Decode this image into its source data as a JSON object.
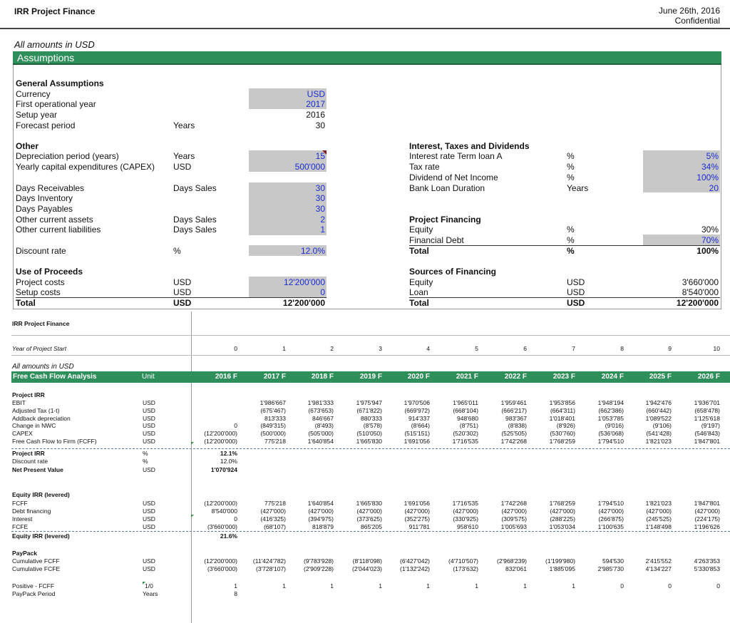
{
  "header": {
    "title": "IRR Project Finance",
    "date": "June 26th, 2016",
    "confidential": "Confidential"
  },
  "amounts_label": "All amounts in USD",
  "assumptions_title": "Assumptions",
  "general": {
    "heading": "General Assumptions",
    "currency": {
      "label": "Currency",
      "value": "USD"
    },
    "first_year": {
      "label": "First operational year",
      "value": "2017"
    },
    "setup_year": {
      "label": "Setup year",
      "value": "2016"
    },
    "forecast": {
      "label": "Forecast period",
      "unit": "Years",
      "value": "30"
    }
  },
  "other": {
    "heading": "Other",
    "dep": {
      "label": "Depreciation period (years)",
      "unit": "Years",
      "value": "15"
    },
    "capex": {
      "label": "Yearly capital expenditures (CAPEX)",
      "unit": "USD",
      "value": "500'000"
    },
    "dr": {
      "label": "Days Receivables",
      "unit": "Days Sales",
      "value": "30"
    },
    "di": {
      "label": "Days Inventory",
      "value": "30"
    },
    "dp": {
      "label": "Days Payables",
      "value": "30"
    },
    "oca": {
      "label": "Other current assets",
      "unit": "Days Sales",
      "value": "2"
    },
    "ocl": {
      "label": "Other current liabilities",
      "unit": "Days Sales",
      "value": "1"
    },
    "disc": {
      "label": "Discount rate",
      "unit": "%",
      "value": "12.0%"
    }
  },
  "use": {
    "heading": "Use of Proceeds",
    "proj": {
      "label": "Project costs",
      "unit": "USD",
      "value": "12'200'000"
    },
    "setup": {
      "label": "Setup costs",
      "unit": "USD",
      "value": "0"
    },
    "total": {
      "label": "Total",
      "unit": "USD",
      "value": "12'200'000"
    }
  },
  "itd": {
    "heading": "Interest, Taxes and Dividends",
    "rate": {
      "label": "Interest rate Term loan A",
      "unit": "%",
      "value": "5%"
    },
    "tax": {
      "label": "Tax rate",
      "unit": "%",
      "value": "34%"
    },
    "div": {
      "label": "Dividend of Net Income",
      "unit": "%",
      "value": "100%"
    },
    "dur": {
      "label": "Bank Loan Duration",
      "unit": "Years",
      "value": "20"
    }
  },
  "pf": {
    "heading": "Project Financing",
    "eq": {
      "label": "Equity",
      "unit": "%",
      "value": "30%"
    },
    "debt": {
      "label": "Financial Debt",
      "unit": "%",
      "value": "70%"
    },
    "total": {
      "label": "Total",
      "unit": "%",
      "value": "100%"
    }
  },
  "sof": {
    "heading": "Sources of Financing",
    "eq": {
      "label": "Equity",
      "unit": "USD",
      "value": "3'660'000"
    },
    "loan": {
      "label": "Loan",
      "unit": "USD",
      "value": "8'540'000"
    },
    "total": {
      "label": "Total",
      "unit": "USD",
      "value": "12'200'000"
    }
  },
  "model": {
    "title": "IRR Project Finance",
    "year_start_label": "Year of Project Start",
    "year_index": [
      "0",
      "1",
      "2",
      "3",
      "4",
      "5",
      "6",
      "7",
      "8",
      "9",
      "10"
    ],
    "amounts_label": "All amounts in USD",
    "fcf_title": "Free Cash Flow Analysis",
    "unit_header": "Unit",
    "years": [
      "2016 F",
      "2017 F",
      "2018 F",
      "2019 F",
      "2020 F",
      "2021 F",
      "2022 F",
      "2023 F",
      "2024 F",
      "2025 F",
      "2026 F"
    ],
    "project_irr_heading": "Project IRR",
    "project_rows": [
      {
        "label": "EBIT",
        "unit": "USD",
        "values": [
          "",
          "1'986'667",
          "1'981'333",
          "1'975'947",
          "1'970'506",
          "1'965'011",
          "1'959'461",
          "1'953'856",
          "1'948'194",
          "1'942'476",
          "1'936'701"
        ]
      },
      {
        "label": "Adjusted Tax (1-t)",
        "unit": "USD",
        "values": [
          "",
          "(675'467)",
          "(673'653)",
          "(671'822)",
          "(669'972)",
          "(668'104)",
          "(666'217)",
          "(664'311)",
          "(662'386)",
          "(660'442)",
          "(658'478)"
        ]
      },
      {
        "label": "Addback depreciation",
        "unit": "USD",
        "values": [
          "",
          "813'333",
          "846'667",
          "880'333",
          "914'337",
          "948'680",
          "983'367",
          "1'018'401",
          "1'053'785",
          "1'089'522",
          "1'125'618"
        ]
      },
      {
        "label": "Change in NWC",
        "unit": "USD",
        "values": [
          "0",
          "(849'315)",
          "(8'493)",
          "(8'578)",
          "(8'664)",
          "(8'751)",
          "(8'838)",
          "(8'926)",
          "(9'016)",
          "(9'106)",
          "(9'197)"
        ]
      },
      {
        "label": "CAPEX",
        "unit": "USD",
        "values": [
          "(12'200'000)",
          "(500'000)",
          "(505'000)",
          "(510'050)",
          "(515'151)",
          "(520'302)",
          "(525'505)",
          "(530'760)",
          "(536'068)",
          "(541'428)",
          "(546'843)"
        ]
      },
      {
        "label": "Free Cash Flow to Firm (FCFF)",
        "unit": "USD",
        "values": [
          "(12'200'000)",
          "775'218",
          "1'640'854",
          "1'665'830",
          "1'691'056",
          "1'716'535",
          "1'742'268",
          "1'768'259",
          "1'794'510",
          "1'821'023",
          "1'847'801"
        ]
      }
    ],
    "project_irr": {
      "label": "Project IRR",
      "unit": "%",
      "value": "12.1%"
    },
    "discount_rate": {
      "label": "Discount rate",
      "unit": "%",
      "value": "12.0%"
    },
    "npv": {
      "label": "Net Present Value",
      "unit": "USD",
      "value": "1'070'924"
    },
    "equity_heading": "Equity IRR (levered)",
    "equity_rows": [
      {
        "label": "FCFF",
        "unit": "USD",
        "values": [
          "(12'200'000)",
          "775'218",
          "1'640'854",
          "1'665'830",
          "1'691'056",
          "1'716'535",
          "1'742'268",
          "1'768'259",
          "1'794'510",
          "1'821'023",
          "1'847'801"
        ]
      },
      {
        "label": "Debt financing",
        "unit": "USD",
        "values": [
          "8'540'000",
          "(427'000)",
          "(427'000)",
          "(427'000)",
          "(427'000)",
          "(427'000)",
          "(427'000)",
          "(427'000)",
          "(427'000)",
          "(427'000)",
          "(427'000)"
        ]
      },
      {
        "label": "Interest",
        "unit": "USD",
        "values": [
          "0",
          "(416'325)",
          "(394'975)",
          "(373'625)",
          "(352'275)",
          "(330'925)",
          "(309'575)",
          "(288'225)",
          "(266'875)",
          "(245'525)",
          "(224'175)"
        ]
      },
      {
        "label": "FCFE",
        "unit": "USD",
        "values": [
          "(3'660'000)",
          "(68'107)",
          "818'879",
          "865'205",
          "911'781",
          "958'610",
          "1'005'693",
          "1'053'034",
          "1'100'635",
          "1'148'498",
          "1'196'626"
        ]
      }
    ],
    "equity_irr": {
      "label": "Equity IRR (levered)",
      "value": "21.6%"
    },
    "payback_heading": "PayPack",
    "payback_rows": [
      {
        "label": "Cumulative FCFF",
        "unit": "USD",
        "values": [
          "(12'200'000)",
          "(11'424'782)",
          "(9'783'928)",
          "(8'118'098)",
          "(6'427'042)",
          "(4'710'507)",
          "(2'968'239)",
          "(1'199'980)",
          "594'530",
          "2'415'552",
          "4'263'353"
        ]
      },
      {
        "label": "Cumulative FCFE",
        "unit": "USD",
        "values": [
          "(3'660'000)",
          "(3'728'107)",
          "(2'909'228)",
          "(2'044'023)",
          "(1'132'242)",
          "(173'632)",
          "832'061",
          "1'885'095",
          "2'985'730",
          "4'134'227",
          "5'330'853"
        ]
      }
    ],
    "positive": {
      "label": "Positive - FCFF",
      "unit": "1/0",
      "values": [
        "1",
        "1",
        "1",
        "1",
        "1",
        "1",
        "1",
        "1",
        "0",
        "0",
        "0"
      ]
    },
    "payback_period": {
      "label": "PayPack Period",
      "unit": "Years",
      "value": "8"
    }
  },
  "colors": {
    "green": "#2f8f5b",
    "blue_input": "#1a2bd8",
    "gray_input": "#c8c8c8"
  }
}
